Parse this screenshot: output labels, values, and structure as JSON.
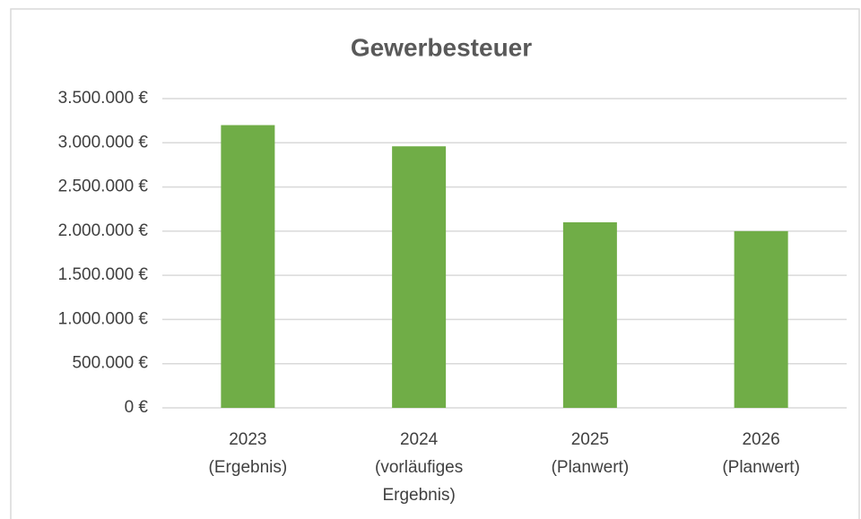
{
  "chart_data": {
    "type": "bar",
    "title": "Gewerbesteuer",
    "categories": [
      [
        "2023",
        "(Ergebnis)"
      ],
      [
        "2024",
        "(vorläufiges",
        "Ergebnis)"
      ],
      [
        "2025",
        "(Planwert)"
      ],
      [
        "2026",
        "(Planwert)"
      ]
    ],
    "values": [
      3200000,
      2960000,
      2100000,
      2000000
    ],
    "color": "#70ad47",
    "ylim": [
      0,
      3500000
    ],
    "yticks": [
      {
        "value": 0,
        "label": "0 €"
      },
      {
        "value": 500000,
        "label": "500.000 €"
      },
      {
        "value": 1000000,
        "label": "1.000.000 €"
      },
      {
        "value": 1500000,
        "label": "1.500.000 €"
      },
      {
        "value": 2000000,
        "label": "2.000.000 €"
      },
      {
        "value": 2500000,
        "label": "2.500.000 €"
      },
      {
        "value": 3000000,
        "label": "3.000.000 €"
      },
      {
        "value": 3500000,
        "label": "3.500.000 €"
      }
    ],
    "grid": true
  }
}
